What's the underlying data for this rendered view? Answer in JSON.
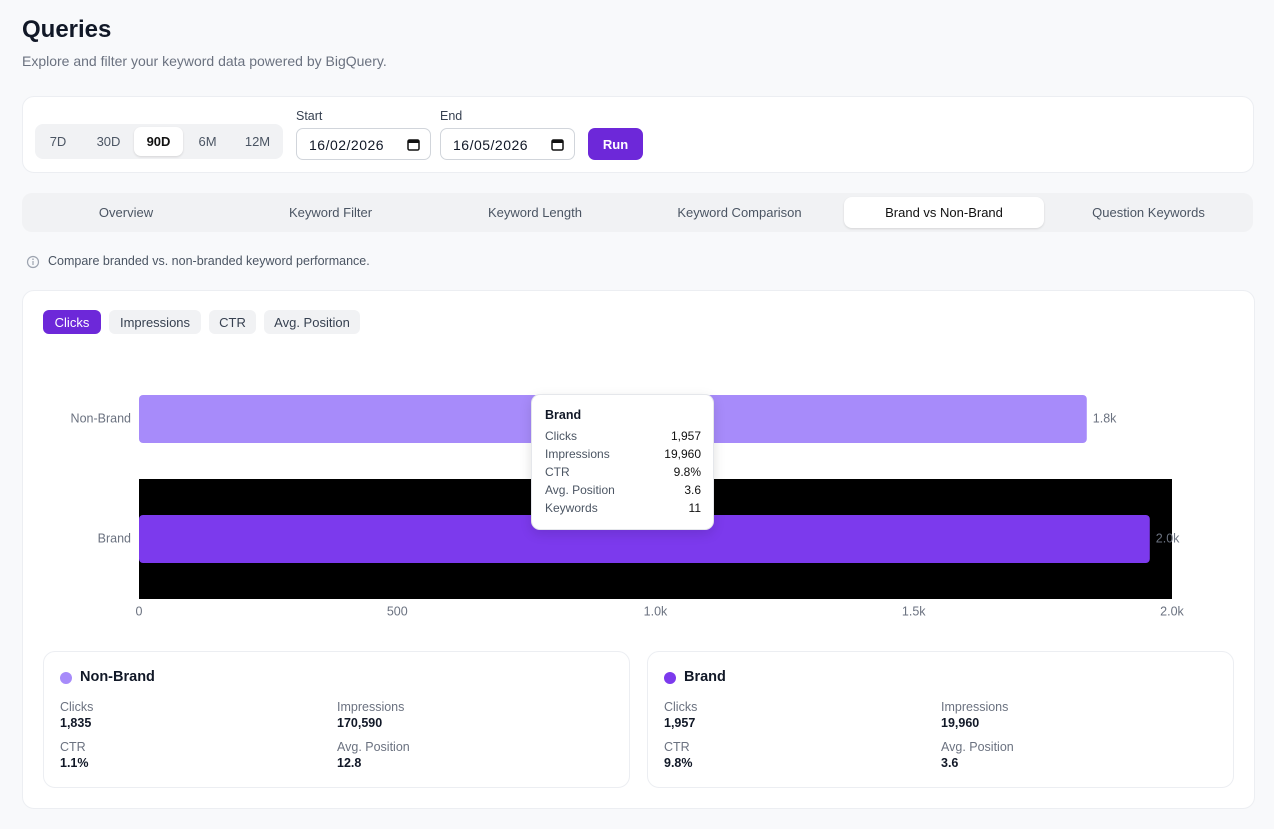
{
  "header": {
    "title": "Queries",
    "subtitle": "Explore and filter your keyword data powered by BigQuery."
  },
  "filters": {
    "ranges": [
      "7D",
      "30D",
      "90D",
      "6M",
      "12M"
    ],
    "active_range": "90D",
    "start_label": "Start",
    "start_date": "16/02/2026",
    "end_label": "End",
    "end_date": "16/05/2026",
    "run": "Run"
  },
  "tabs": {
    "items": [
      "Overview",
      "Keyword Filter",
      "Keyword Length",
      "Keyword Comparison",
      "Brand vs Non-Brand",
      "Question Keywords"
    ],
    "active": "Brand vs Non-Brand"
  },
  "info": "Compare branded vs. non-branded keyword performance.",
  "metrics": {
    "items": [
      "Clicks",
      "Impressions",
      "CTR",
      "Avg. Position"
    ],
    "active": "Clicks"
  },
  "chart_data": {
    "type": "hbar",
    "categories": [
      "Non-Brand",
      "Brand"
    ],
    "values": [
      1835,
      1957
    ],
    "value_labels": [
      "1.8k",
      "2.0k"
    ],
    "colors": [
      "#a78bfa",
      "#7c3aed"
    ],
    "xlim": [
      0,
      2000
    ],
    "xticks": [
      0,
      500,
      {
        "value": 1000,
        "label": "1.0k"
      },
      {
        "value": 1500,
        "label": "1.5k"
      },
      {
        "value": 2000,
        "label": "2.0k"
      }
    ]
  },
  "tooltip": {
    "title": "Brand",
    "rows": [
      [
        "Clicks",
        "1,957"
      ],
      [
        "Impressions",
        "19,960"
      ],
      [
        "CTR",
        "9.8%"
      ],
      [
        "Avg. Position",
        "3.6"
      ],
      [
        "Keywords",
        "11"
      ]
    ]
  },
  "summary_cards": [
    {
      "name": "Non-Brand",
      "metrics": [
        [
          "Clicks",
          "1,835"
        ],
        [
          "Impressions",
          "170,590"
        ],
        [
          "CTR",
          "1.1%"
        ],
        [
          "Avg. Position",
          "12.8"
        ]
      ]
    },
    {
      "name": "Brand",
      "metrics": [
        [
          "Clicks",
          "1,957"
        ],
        [
          "Impressions",
          "19,960"
        ],
        [
          "CTR",
          "9.8%"
        ],
        [
          "Avg. Position",
          "3.6"
        ]
      ]
    }
  ]
}
